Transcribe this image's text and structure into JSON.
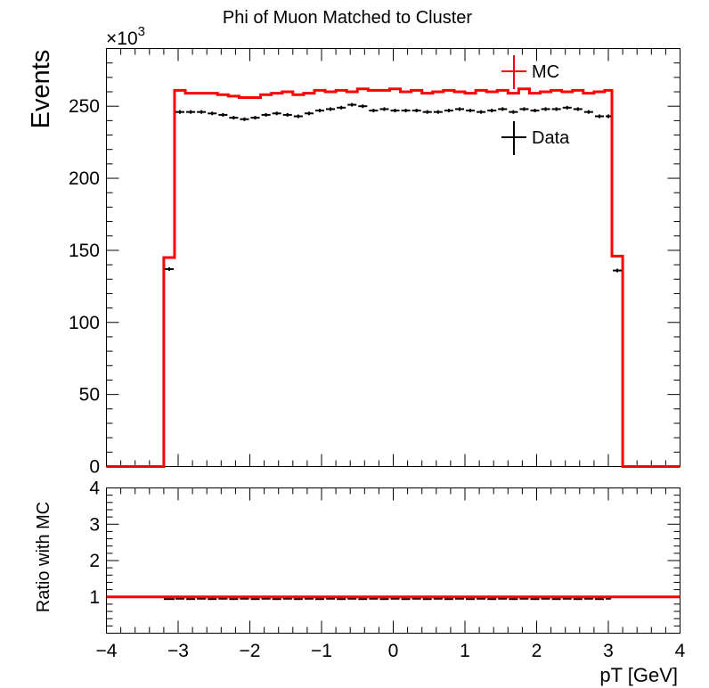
{
  "chart_data": [
    {
      "type": "line",
      "title": "Phi of Muon Matched to Cluster",
      "ylabel": "Events",
      "y_scale_label": "×10",
      "y_scale_exponent": "3",
      "xlim": [
        -4,
        4
      ],
      "ylim": [
        0,
        290
      ],
      "yticks": [
        "0",
        "50",
        "100",
        "150",
        "200",
        "250"
      ],
      "legend_position": "top-right",
      "legend": [
        "MC",
        "Data"
      ],
      "bin_edges": [
        -3.2,
        -3.05,
        -2.9,
        -2.75,
        -2.6,
        -2.45,
        -2.3,
        -2.15,
        -2.0,
        -1.85,
        -1.7,
        -1.55,
        -1.4,
        -1.25,
        -1.1,
        -0.95,
        -0.8,
        -0.65,
        -0.5,
        -0.35,
        -0.2,
        -0.05,
        0.1,
        0.25,
        0.4,
        0.55,
        0.7,
        0.85,
        1.0,
        1.15,
        1.3,
        1.45,
        1.6,
        1.75,
        1.9,
        2.05,
        2.2,
        2.35,
        2.5,
        2.65,
        2.8,
        2.95,
        3.05,
        3.2
      ],
      "series": [
        {
          "name": "MC",
          "color": "#ff0000",
          "style": "histogram",
          "values": [
            145,
            261,
            259,
            259,
            259,
            258,
            257,
            256,
            256,
            258,
            259,
            260,
            258,
            259,
            261,
            260,
            261,
            260,
            262,
            261,
            261,
            262,
            260,
            261,
            259,
            260,
            261,
            260,
            259,
            261,
            260,
            261,
            259,
            262,
            259,
            260,
            261,
            260,
            261,
            259,
            260,
            261,
            146
          ]
        },
        {
          "name": "Data",
          "color": "#000000",
          "style": "errorbar",
          "values": [
            137,
            246,
            246,
            246,
            245,
            244,
            242,
            241,
            242,
            244,
            245,
            244,
            243,
            245,
            247,
            248,
            249,
            251,
            250,
            247,
            248,
            247,
            247,
            247,
            246,
            246,
            247,
            248,
            247,
            246,
            247,
            248,
            246,
            248,
            247,
            248,
            248,
            249,
            248,
            246,
            243,
            243,
            136
          ]
        }
      ]
    },
    {
      "type": "line",
      "ylabel": "Ratio with MC",
      "xlabel": "pT [GeV]",
      "xlim": [
        -4,
        4
      ],
      "ylim": [
        0,
        4
      ],
      "xticks": [
        "−4",
        "−3",
        "−2",
        "−1",
        "0",
        "1",
        "2",
        "3",
        "4"
      ],
      "yticks": [
        "1",
        "2",
        "3",
        "4"
      ],
      "series": [
        {
          "name": "MC",
          "color": "#ff0000",
          "values": [
            1,
            1
          ]
        },
        {
          "name": "Data",
          "color": "#000000",
          "values": [
            0.94,
            0.95
          ]
        }
      ]
    }
  ]
}
